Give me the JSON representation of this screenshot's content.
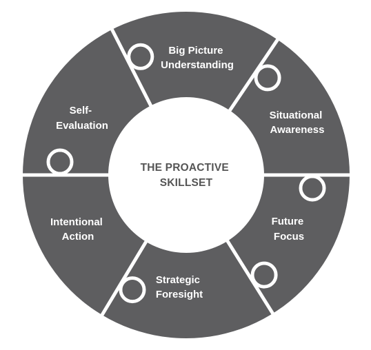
{
  "diagram": {
    "center_lines": [
      "THE PROACTIVE",
      "SKILLSET"
    ],
    "segments": [
      {
        "lines": [
          "Big Picture",
          "Understanding"
        ]
      },
      {
        "lines": [
          "Situational",
          "Awareness"
        ]
      },
      {
        "lines": [
          "Future",
          "Focus"
        ]
      },
      {
        "lines": [
          "Strategic",
          "Foresight"
        ]
      },
      {
        "lines": [
          "Intentional",
          "Action"
        ]
      },
      {
        "lines": [
          "Self-",
          "Evaluation"
        ]
      }
    ],
    "colors": {
      "segment_fill": "#5e5e60",
      "separator": "#ffffff",
      "center_fill": "#ffffff",
      "center_text": "#555555",
      "segment_text": "#ffffff"
    }
  }
}
